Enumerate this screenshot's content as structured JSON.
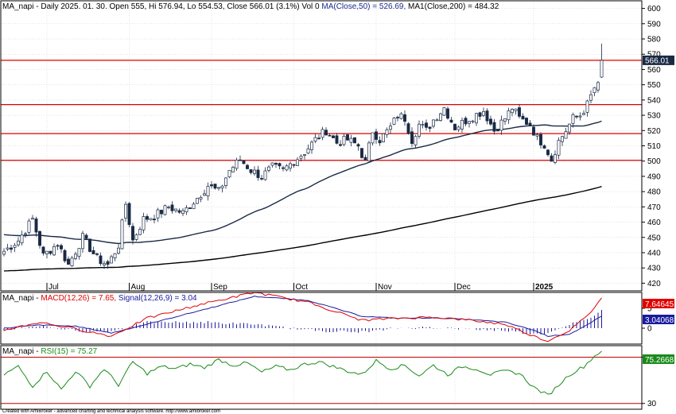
{
  "colors": {
    "background": "#ffffff",
    "frame": "#000000",
    "grid": "#c8c8c8",
    "support_line": "#e00000",
    "candle_up": "#ffffff",
    "candle_down": "#1a2a44",
    "ma50": "#1a2a44",
    "ma200": "#000000",
    "macd": "#e00000",
    "signal": "#1a1aa0",
    "histogram": "#1a1aa0",
    "rsi": "#1a8a1a",
    "rsi_band": "#c00000",
    "close_tag": "#1a2a44",
    "macd_tag": "#e00000",
    "signal_tag": "#1a1aa0",
    "rsi_tag": "#1a8a1a"
  },
  "header": {
    "main": {
      "prefix": "MA_napi - Daily 2025. 01. 30. Open 555, Hi 576.94, Lo 554.53, Close 566.01 (3.1%) Vol 0",
      "ma50": "MA(Close,50) = 526.69,",
      "ma200": "MA1(Close,200) = 484.32"
    },
    "macd": {
      "prefix": "MA_napi -",
      "macd": "MACD(12,26) = 7.65,",
      "signal": "Signal(12,26,9) = 3.04"
    },
    "rsi": {
      "prefix": "MA_napi -",
      "rsi": "RSI(15) = 75.27"
    }
  },
  "footer": "Created with AmiBroker - advanced charting and technical analysis software. http://www.amibroker.com",
  "chart_data": [
    {
      "type": "candlestick",
      "title": "MA_napi - Daily",
      "ylim": [
        415,
        605
      ],
      "yticks": [
        420,
        430,
        440,
        450,
        460,
        470,
        480,
        490,
        500,
        510,
        520,
        530,
        540,
        550,
        560,
        570,
        580,
        590,
        600
      ],
      "x_labels": [
        {
          "label": "Jul",
          "index": 12
        },
        {
          "label": "Aug",
          "index": 35
        },
        {
          "label": "Sep",
          "index": 58
        },
        {
          "label": "Oct",
          "index": 81
        },
        {
          "label": "Nov",
          "index": 104
        },
        {
          "label": "Dec",
          "index": 126
        },
        {
          "label": "2025",
          "index": 148
        }
      ],
      "grid": true,
      "horizontal_lines": [
        566.01,
        537,
        518,
        500.5
      ],
      "last_close": 566.01,
      "last_close_label": "566.01",
      "series": [
        {
          "name": "MA(Close,50)",
          "values": []
        },
        {
          "name": "MA1(Close,200)",
          "values": []
        }
      ],
      "ohlc_anchors": [
        [
          0,
          441
        ],
        [
          4,
          448
        ],
        [
          8,
          462
        ],
        [
          11,
          438
        ],
        [
          15,
          446
        ],
        [
          18,
          432
        ],
        [
          22,
          450
        ],
        [
          26,
          436
        ],
        [
          29,
          432
        ],
        [
          32,
          445
        ],
        [
          34,
          472
        ],
        [
          36,
          448
        ],
        [
          39,
          462
        ],
        [
          42,
          464
        ],
        [
          46,
          470
        ],
        [
          50,
          466
        ],
        [
          54,
          476
        ],
        [
          57,
          484
        ],
        [
          60,
          480
        ],
        [
          63,
          494
        ],
        [
          66,
          501
        ],
        [
          69,
          494
        ],
        [
          72,
          490
        ],
        [
          75,
          496
        ],
        [
          78,
          494
        ],
        [
          81,
          500
        ],
        [
          84,
          506
        ],
        [
          87,
          514
        ],
        [
          90,
          520
        ],
        [
          93,
          512
        ],
        [
          96,
          514
        ],
        [
          99,
          510
        ],
        [
          101,
          499
        ],
        [
          103,
          520
        ],
        [
          105,
          514
        ],
        [
          108,
          522
        ],
        [
          110,
          530
        ],
        [
          112,
          528
        ],
        [
          114,
          514
        ],
        [
          116,
          524
        ],
        [
          118,
          520
        ],
        [
          120,
          527
        ],
        [
          123,
          535
        ],
        [
          126,
          522
        ],
        [
          130,
          528
        ],
        [
          134,
          533
        ],
        [
          137,
          520
        ],
        [
          140,
          528
        ],
        [
          142,
          535
        ],
        [
          144,
          528
        ],
        [
          147,
          524
        ],
        [
          149,
          515
        ],
        [
          151,
          511
        ],
        [
          153,
          501
        ],
        [
          155,
          513
        ],
        [
          157,
          520
        ],
        [
          159,
          528
        ],
        [
          161,
          530
        ],
        [
          163,
          537
        ],
        [
          165,
          548
        ],
        [
          166,
          549
        ],
        [
          167,
          566.01
        ]
      ],
      "last_candle": {
        "open": 555,
        "high": 576.94,
        "low": 554.53,
        "close": 566.01
      }
    },
    {
      "type": "line",
      "title": "MACD",
      "ylim": [
        -4,
        9
      ],
      "yticks": [
        0,
        5
      ],
      "series": [
        {
          "name": "MACD(12,26)",
          "last": 7.65,
          "anchors": [
            [
              0,
              -0.5
            ],
            [
              10,
              1.5
            ],
            [
              20,
              -0.2
            ],
            [
              30,
              -2
            ],
            [
              40,
              2.5
            ],
            [
              55,
              6
            ],
            [
              70,
              9
            ],
            [
              85,
              6.5
            ],
            [
              100,
              2
            ],
            [
              110,
              2.5
            ],
            [
              120,
              2.8
            ],
            [
              130,
              2
            ],
            [
              140,
              1
            ],
            [
              148,
              -2
            ],
            [
              152,
              -3.2
            ],
            [
              158,
              -0.5
            ],
            [
              163,
              3
            ],
            [
              167,
              7.65
            ]
          ]
        },
        {
          "name": "Signal(12,26,9)",
          "last": 3.04,
          "anchors": [
            [
              0,
              0
            ],
            [
              10,
              0.8
            ],
            [
              20,
              0.5
            ],
            [
              30,
              -1.2
            ],
            [
              40,
              1
            ],
            [
              55,
              4.5
            ],
            [
              70,
              8
            ],
            [
              85,
              7
            ],
            [
              100,
              3
            ],
            [
              110,
              2.5
            ],
            [
              120,
              2.6
            ],
            [
              130,
              2.2
            ],
            [
              140,
              1.5
            ],
            [
              148,
              -0.5
            ],
            [
              152,
              -2
            ],
            [
              158,
              -1.5
            ],
            [
              163,
              0.8
            ],
            [
              167,
              3.04
            ]
          ]
        }
      ],
      "last_labels": [
        "7.64645",
        "3.04068"
      ]
    },
    {
      "type": "line",
      "title": "RSI",
      "ylim": [
        25,
        80
      ],
      "yticks": [
        30,
        70
      ],
      "bands": [
        70,
        30
      ],
      "series": [
        {
          "name": "RSI(15)",
          "last": 75.27,
          "anchors": [
            [
              0,
              55
            ],
            [
              4,
              62
            ],
            [
              8,
              45
            ],
            [
              12,
              58
            ],
            [
              16,
              42
            ],
            [
              20,
              58
            ],
            [
              24,
              45
            ],
            [
              28,
              60
            ],
            [
              32,
              46
            ],
            [
              36,
              66
            ],
            [
              40,
              56
            ],
            [
              44,
              62
            ],
            [
              48,
              60
            ],
            [
              52,
              64
            ],
            [
              56,
              61
            ],
            [
              60,
              68
            ],
            [
              64,
              63
            ],
            [
              68,
              65
            ],
            [
              72,
              57
            ],
            [
              76,
              62
            ],
            [
              80,
              59
            ],
            [
              84,
              64
            ],
            [
              88,
              66
            ],
            [
              92,
              62
            ],
            [
              96,
              58
            ],
            [
              100,
              55
            ],
            [
              104,
              67
            ],
            [
              108,
              60
            ],
            [
              112,
              63
            ],
            [
              116,
              54
            ],
            [
              120,
              63
            ],
            [
              124,
              55
            ],
            [
              128,
              62
            ],
            [
              132,
              60
            ],
            [
              136,
              55
            ],
            [
              140,
              58
            ],
            [
              144,
              56
            ],
            [
              148,
              44
            ],
            [
              152,
              37
            ],
            [
              155,
              46
            ],
            [
              158,
              55
            ],
            [
              162,
              62
            ],
            [
              165,
              71
            ],
            [
              167,
              75.27
            ]
          ]
        }
      ],
      "last_label": "75.2668"
    }
  ]
}
